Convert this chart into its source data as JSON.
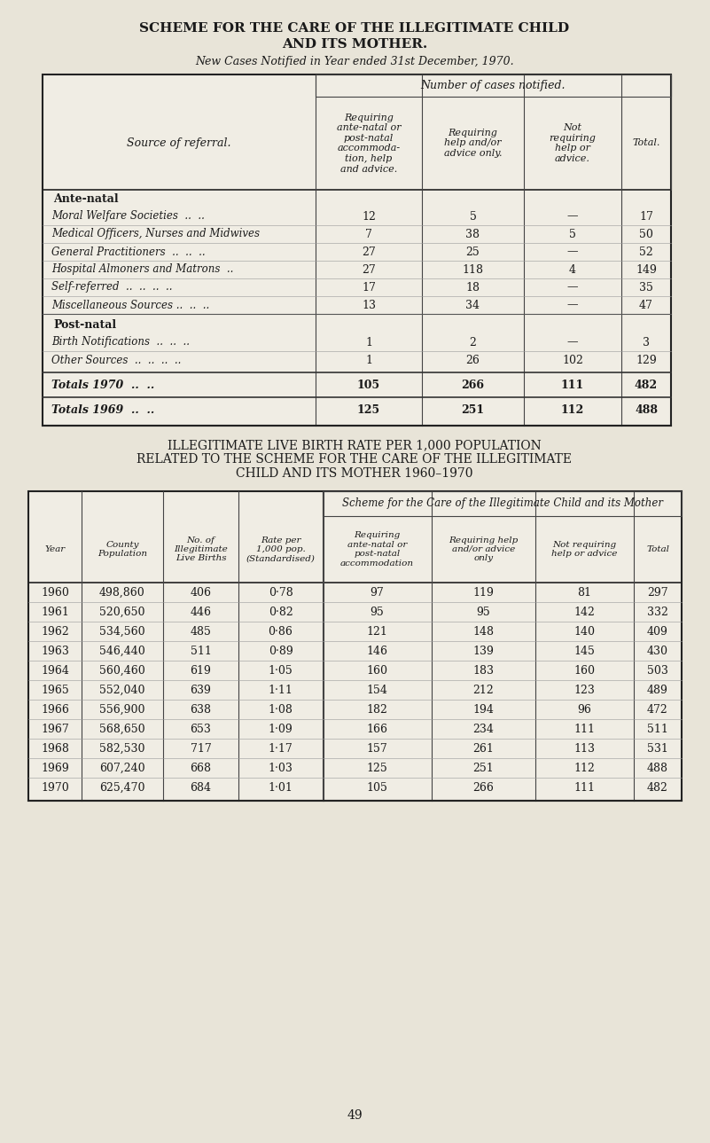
{
  "title1": "SCHEME FOR THE CARE OF THE ILLEGITIMATE CHILD",
  "title2": "AND ITS MOTHER.",
  "subtitle": "New Cases Notified in Year ended 31st December, 1970.",
  "table1_header_col0": "Source of referral.",
  "table1_header_col1": "Requiring\nante-natal or\npost-natal\naccommoda-\ntion, help\nand advice.",
  "table1_header_col2": "Requiring\nhelp and/or\nadvice only.",
  "table1_header_col3": "Not\nrequiring\nhelp or\nadvice.",
  "table1_header_col4": "Total.",
  "table1_header_span": "Number of cases notified.",
  "table1_section1_label": "Ante-natal",
  "table1_rows_antenatal": [
    [
      "Moral Welfare Societies  ..  ..",
      "12",
      "5",
      "—",
      "17"
    ],
    [
      "Medical Officers, Nurses and Midwives",
      "7",
      "38",
      "5",
      "50"
    ],
    [
      "General Practitioners  ..  ..  ..",
      "27",
      "25",
      "—",
      "52"
    ],
    [
      "Hospital Almoners and Matrons  ..",
      "27",
      "118",
      "4",
      "149"
    ],
    [
      "Self-referred  ..  ..  ..  ..",
      "17",
      "18",
      "—",
      "35"
    ],
    [
      "Miscellaneous Sources ..  ..  ..",
      "13",
      "34",
      "—",
      "47"
    ]
  ],
  "table1_section2_label": "Post-natal",
  "table1_rows_postnatal": [
    [
      "Birth Notifications  ..  ..  ..",
      "1",
      "2",
      "—",
      "3"
    ],
    [
      "Other Sources  ..  ..  ..  ..",
      "1",
      "26",
      "102",
      "129"
    ]
  ],
  "table1_total1970_label": "Totals 1970  ..  ..",
  "table1_total1970_vals": [
    "105",
    "266",
    "111",
    "482"
  ],
  "table1_total1969_label": "Totals 1969  ..  ..",
  "table1_total1969_vals": [
    "125",
    "251",
    "112",
    "488"
  ],
  "title3_line1": "ILLEGITIMATE LIVE BIRTH RATE PER 1,000 POPULATION",
  "title3_line2": "RELATED TO THE SCHEME FOR THE CARE OF THE ILLEGITIMATE",
  "title3_line3": "CHILD AND ITS MOTHER 1960–1970",
  "table2_span_header": "Scheme for the Care of the Illegitimate Child and its Mother",
  "table2_col_headers": [
    "Year",
    "County\nPopulation",
    "No. of\nIllegitimate\nLive Births",
    "Rate per\n1,000 pop.\n(Standardised)",
    "Requiring\nante-natal or\npost-natal\naccommodation",
    "Requiring help\nand/or advice\nonly",
    "Not requiring\nhelp or advice",
    "Total"
  ],
  "table2_rows": [
    [
      "1960",
      "498,860",
      "406",
      "0·78",
      "97",
      "119",
      "81",
      "297"
    ],
    [
      "1961",
      "520,650",
      "446",
      "0·82",
      "95",
      "95",
      "142",
      "332"
    ],
    [
      "1962",
      "534,560",
      "485",
      "0·86",
      "121",
      "148",
      "140",
      "409"
    ],
    [
      "1963",
      "546,440",
      "511",
      "0·89",
      "146",
      "139",
      "145",
      "430"
    ],
    [
      "1964",
      "560,460",
      "619",
      "1·05",
      "160",
      "183",
      "160",
      "503"
    ],
    [
      "1965",
      "552,040",
      "639",
      "1·11",
      "154",
      "212",
      "123",
      "489"
    ],
    [
      "1966",
      "556,900",
      "638",
      "1·08",
      "182",
      "194",
      "96",
      "472"
    ],
    [
      "1967",
      "568,650",
      "653",
      "1·09",
      "166",
      "234",
      "111",
      "511"
    ],
    [
      "1968",
      "582,530",
      "717",
      "1·17",
      "157",
      "261",
      "113",
      "531"
    ],
    [
      "1969",
      "607,240",
      "668",
      "1·03",
      "125",
      "251",
      "112",
      "488"
    ],
    [
      "1970",
      "625,470",
      "684",
      "1·01",
      "105",
      "266",
      "111",
      "482"
    ]
  ],
  "bg_color": "#e8e4d8",
  "white": "#f0ede4",
  "text_color": "#1a1a1a",
  "page_number": "49"
}
